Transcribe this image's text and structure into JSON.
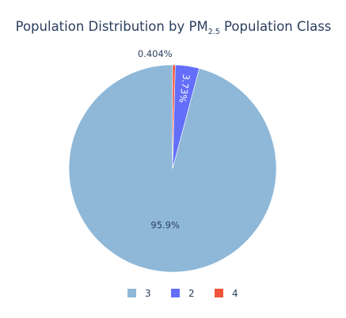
{
  "chart_data": {
    "type": "pie",
    "title": {
      "prefix": "Population Distribution by  PM",
      "subscript": "2.5",
      "suffix": " Population Class"
    },
    "slices": [
      {
        "label": "3",
        "percent_label": "95.9%",
        "value": 95.866,
        "color": "#8fb8d8"
      },
      {
        "label": "2",
        "percent_label": "3.73%",
        "value": 3.73,
        "color": "#636efa"
      },
      {
        "label": "4",
        "percent_label": "0.404%",
        "value": 0.404,
        "color": "#ef553b"
      }
    ],
    "legend_position": "bottom"
  }
}
